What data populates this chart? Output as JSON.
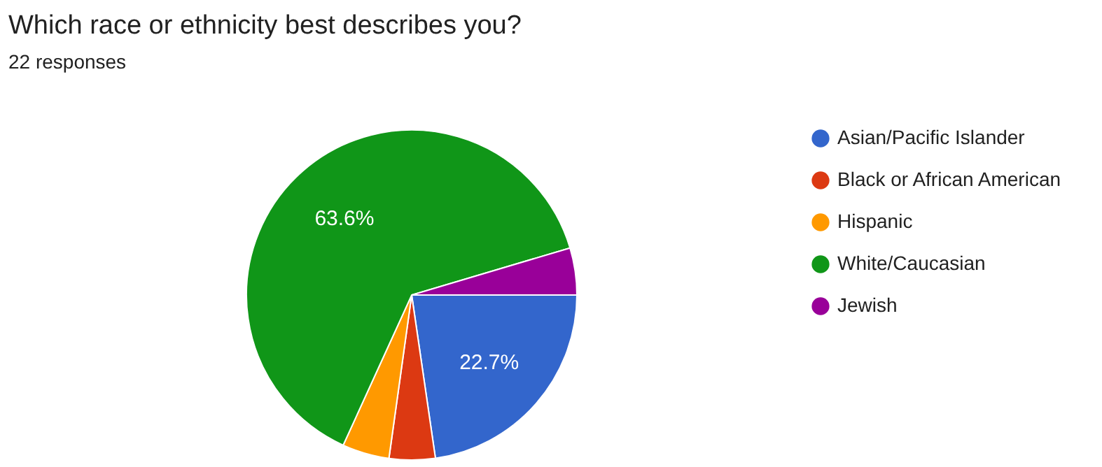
{
  "chart_data": {
    "type": "pie",
    "title": "Which race or ethnicity best describes you?",
    "subtitle": "22 responses",
    "categories": [
      "Asian/Pacific Islander",
      "Black or African American",
      "Hispanic",
      "White/Caucasian",
      "Jewish"
    ],
    "values": [
      22.7,
      4.5,
      4.6,
      63.6,
      4.6
    ],
    "colors": [
      "#3366cc",
      "#dc3912",
      "#ff9900",
      "#109618",
      "#990099"
    ],
    "value_labels": [
      "22.7%",
      null,
      null,
      "63.6%",
      null
    ],
    "legend": "right"
  }
}
